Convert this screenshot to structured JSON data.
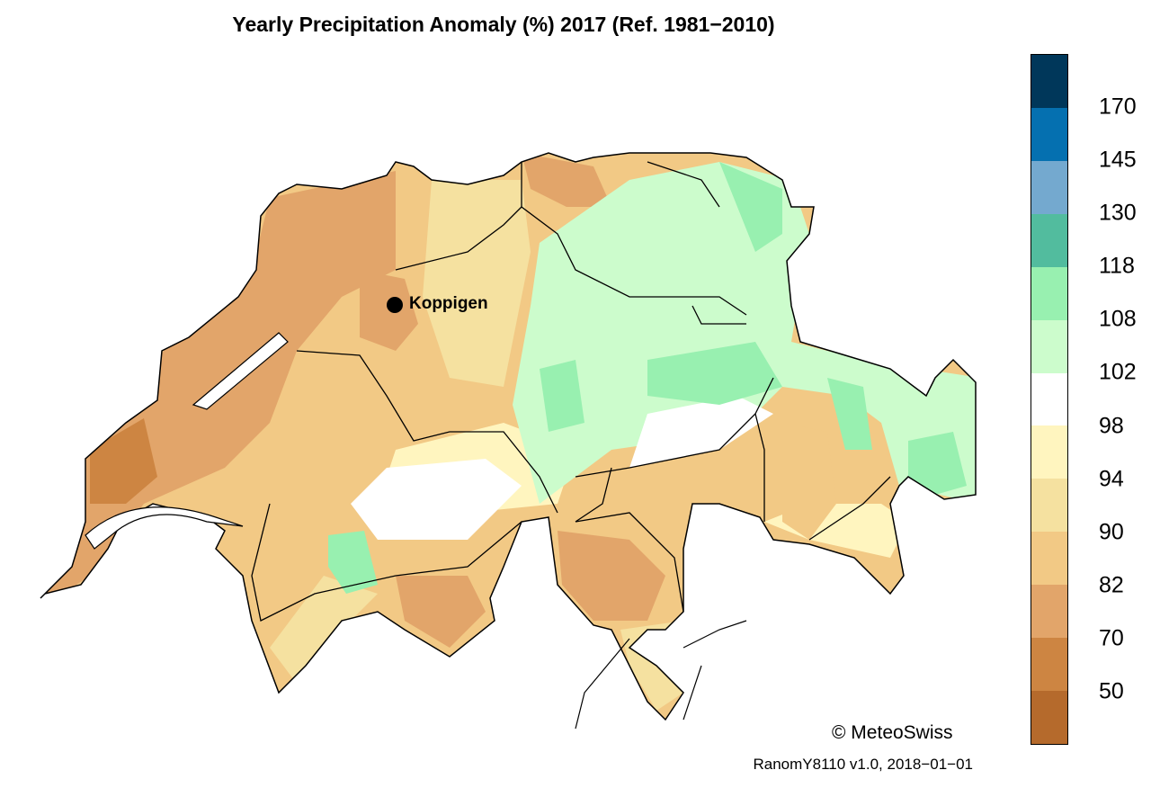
{
  "title": "Yearly Precipitation Anomaly (%) 2017  (Ref. 1981−2010)",
  "station": {
    "name": "Koppigen"
  },
  "colorbar": {
    "ticks": [
      "170",
      "145",
      "130",
      "118",
      "108",
      "102",
      "98",
      "94",
      "90",
      "82",
      "70",
      "50"
    ],
    "colors": [
      "#00375a",
      "#0570b0",
      "#74a9cf",
      "#52bc9e",
      "#98f0b0",
      "#ccfccc",
      "#ffffff",
      "#fff5bf",
      "#f5e1a0",
      "#f2c985",
      "#e2a56a",
      "#cd8542",
      "#b56a2c"
    ]
  },
  "credit": "© MeteoSwiss",
  "version": "RanomY8110 v1.0, 2018−01−01"
}
